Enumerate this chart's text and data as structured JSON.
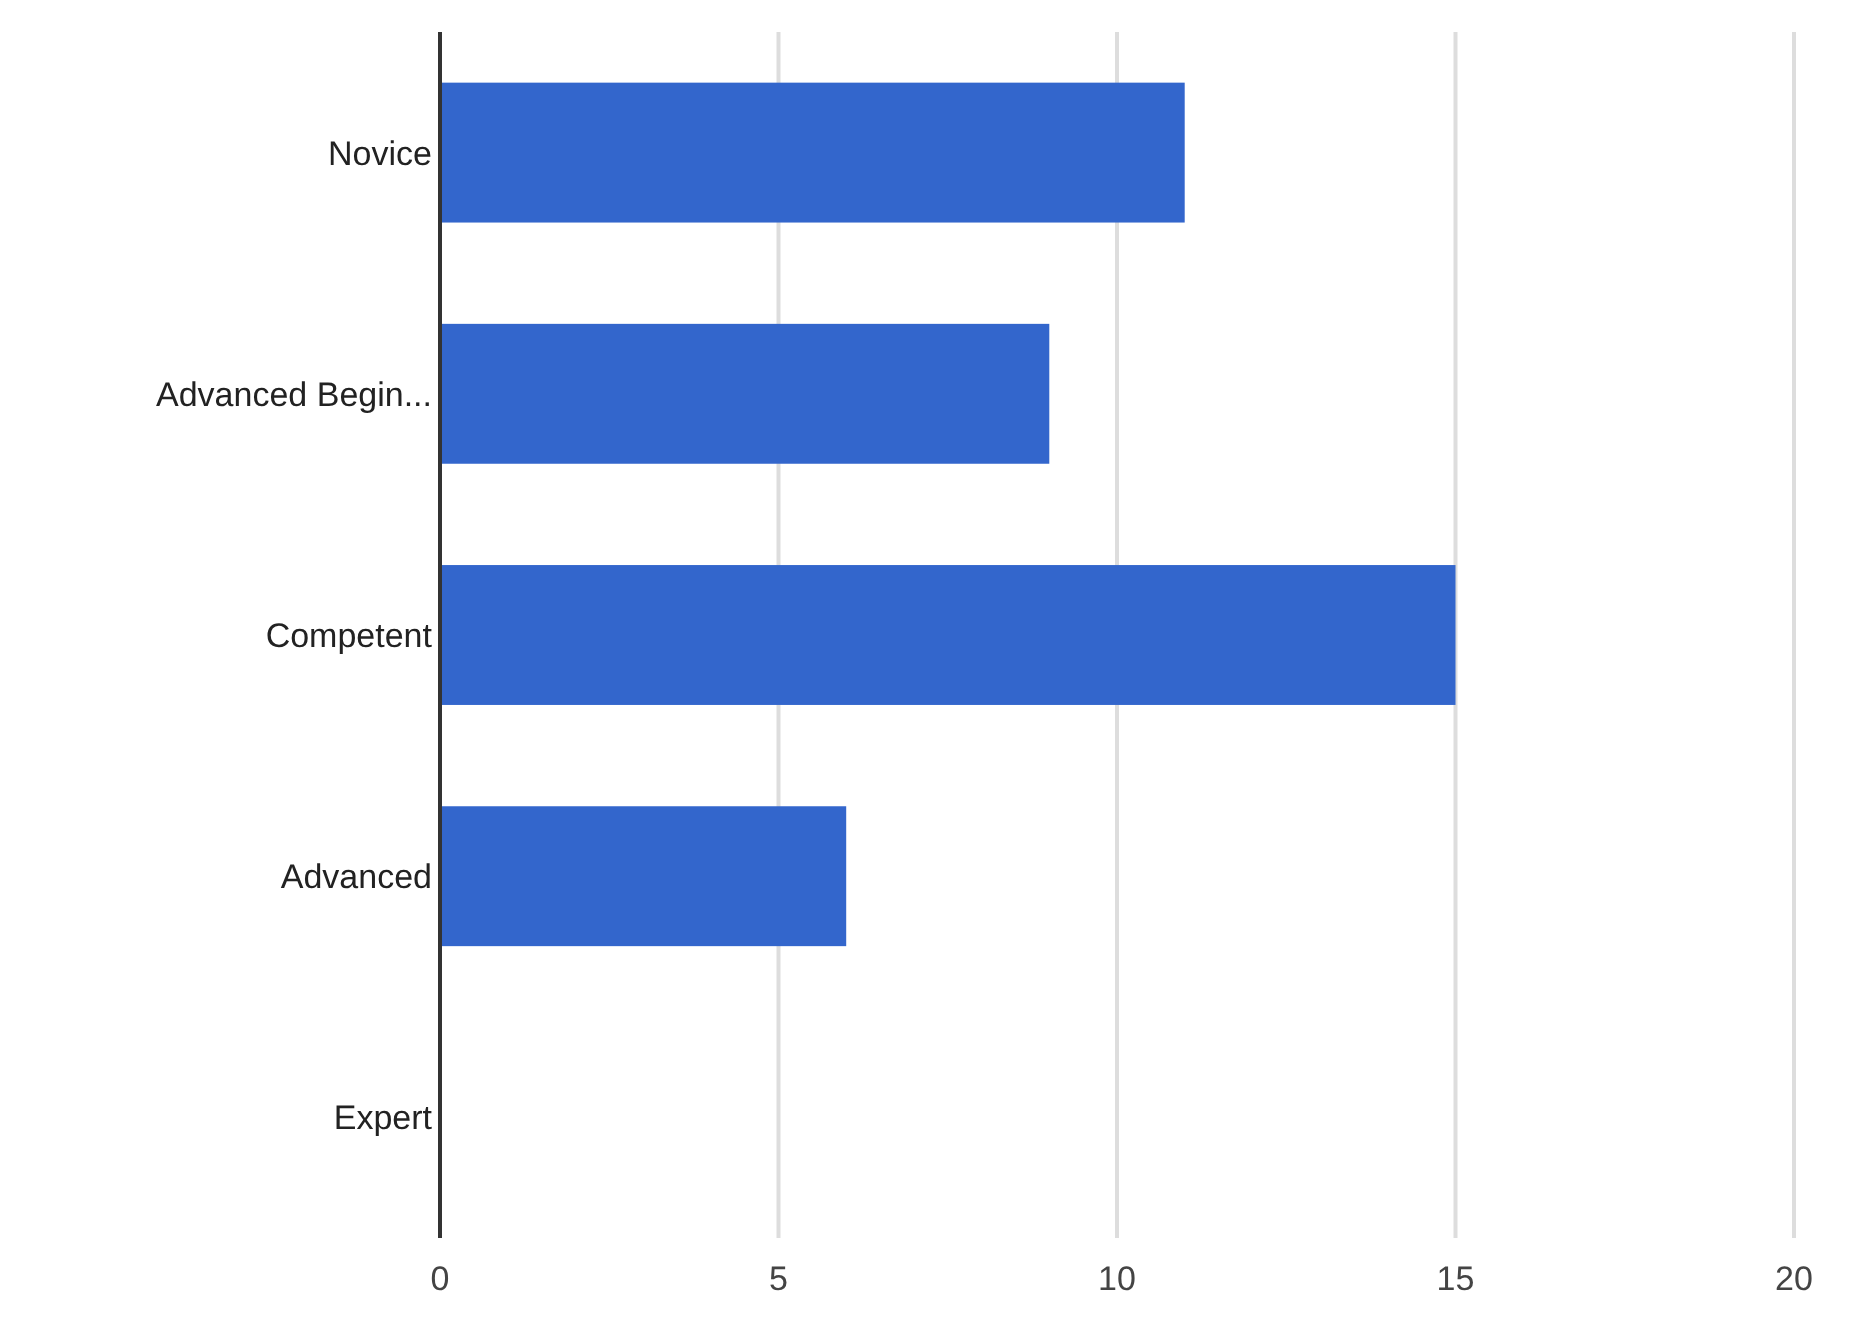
{
  "chart_data": {
    "type": "bar",
    "orientation": "horizontal",
    "categories": [
      "Novice",
      "Advanced Begin...",
      "Competent",
      "Advanced",
      "Expert"
    ],
    "values": [
      11,
      9,
      15,
      6,
      0
    ],
    "color": "#3366cc",
    "xlim": [
      0,
      20
    ],
    "xticks": [
      0,
      5,
      10,
      15,
      20
    ],
    "grid": "x"
  }
}
